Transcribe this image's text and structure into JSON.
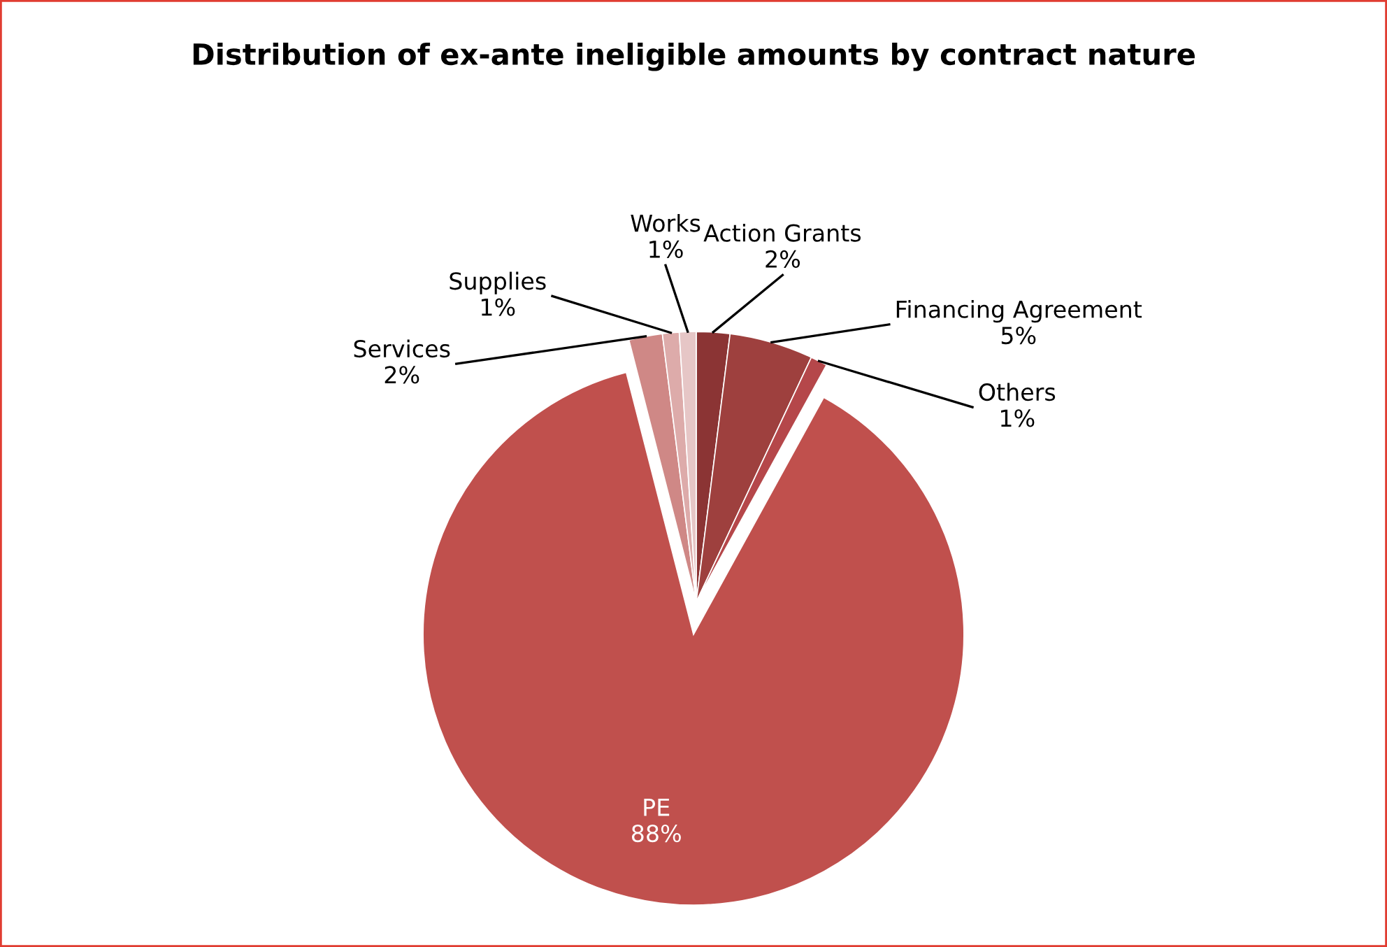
{
  "chart_data": {
    "type": "pie",
    "title": "Distribution of ex-ante ineligible amounts by contract nature",
    "categories": [
      "Action Grants",
      "Financing Agreement",
      "Others",
      "PE",
      "Services",
      "Supplies",
      "Works"
    ],
    "values": [
      2,
      5,
      1,
      88,
      2,
      1,
      1
    ],
    "colors": [
      "#8B3434",
      "#9E403E",
      "#B5474A",
      "#C0504D",
      "#CF8886",
      "#DDABAA",
      "#E6C6C6"
    ],
    "value_labels": [
      "2%",
      "5%",
      "1%",
      "88%",
      "2%",
      "1%",
      "1%"
    ],
    "legend": false
  }
}
